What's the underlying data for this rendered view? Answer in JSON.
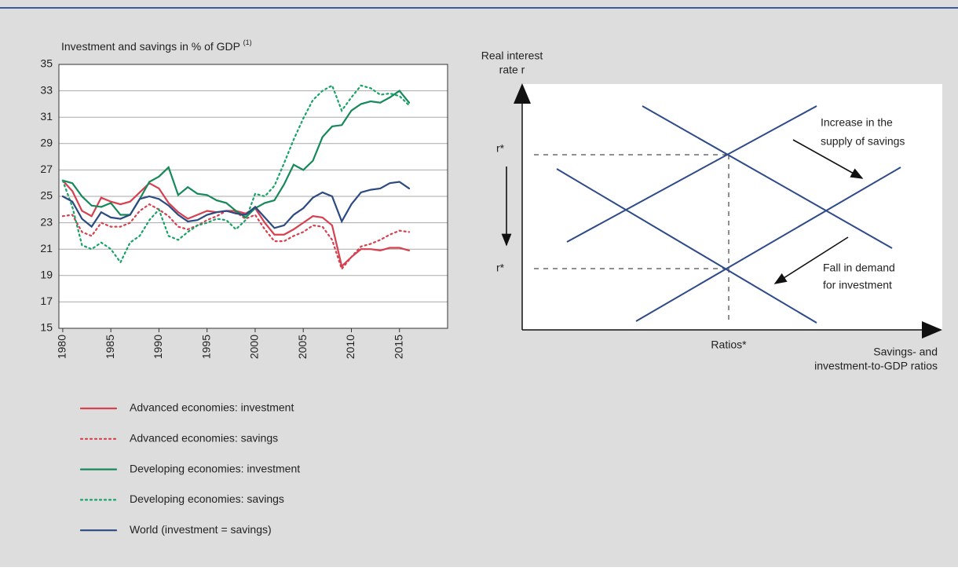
{
  "chart_data": {
    "type": "line",
    "title": "Investment and savings in % of GDP",
    "title_note": "(1)",
    "x": [
      1980,
      1981,
      1982,
      1983,
      1984,
      1985,
      1986,
      1987,
      1988,
      1989,
      1990,
      1991,
      1992,
      1993,
      1994,
      1995,
      1996,
      1997,
      1998,
      1999,
      2000,
      2001,
      2002,
      2003,
      2004,
      2005,
      2006,
      2007,
      2008,
      2009,
      2010,
      2011,
      2012,
      2013,
      2014,
      2015,
      2016
    ],
    "xlim": [
      1979.6,
      2020
    ],
    "xticks": [
      1980,
      1985,
      1990,
      1995,
      2000,
      2005,
      2010,
      2015
    ],
    "ylim": [
      15,
      35
    ],
    "yticks": [
      15,
      17,
      19,
      21,
      23,
      25,
      27,
      29,
      31,
      33,
      35
    ],
    "grid": true,
    "series": [
      {
        "name": "Advanced economies: investment",
        "color": "#d6404f",
        "style": "solid",
        "values": [
          26.2,
          25.4,
          23.9,
          23.5,
          24.9,
          24.6,
          24.4,
          24.6,
          25.3,
          26.0,
          25.6,
          24.5,
          23.8,
          23.3,
          23.6,
          23.9,
          23.8,
          23.9,
          23.9,
          23.7,
          24.1,
          23.0,
          22.1,
          22.1,
          22.5,
          23.0,
          23.5,
          23.4,
          22.8,
          19.7,
          20.4,
          21.0,
          21.0,
          20.9,
          21.1,
          21.1,
          20.9
        ]
      },
      {
        "name": "Advanced economies: savings",
        "color": "#d6404f",
        "style": "dotted",
        "values": [
          23.5,
          23.6,
          22.3,
          22.0,
          23.0,
          22.7,
          22.7,
          23.0,
          23.9,
          24.4,
          24.0,
          23.5,
          22.7,
          22.5,
          22.8,
          23.2,
          23.5,
          23.9,
          23.8,
          23.3,
          23.6,
          22.5,
          21.6,
          21.6,
          22.0,
          22.3,
          22.8,
          22.7,
          21.7,
          19.5,
          20.4,
          21.2,
          21.4,
          21.7,
          22.1,
          22.4,
          22.3
        ]
      },
      {
        "name": "Developing economies: investment",
        "color": "#16895a",
        "style": "solid",
        "values": [
          26.2,
          26.0,
          25.0,
          24.3,
          24.2,
          24.5,
          23.6,
          23.6,
          24.8,
          26.1,
          26.5,
          27.2,
          25.1,
          25.7,
          25.2,
          25.1,
          24.7,
          24.5,
          23.9,
          23.4,
          24.1,
          24.5,
          24.7,
          25.9,
          27.4,
          27.0,
          27.7,
          29.5,
          30.3,
          30.4,
          31.5,
          32.0,
          32.2,
          32.1,
          32.5,
          33.0,
          32.1
        ]
      },
      {
        "name": "Developing economies: savings",
        "color": "#16a366",
        "style": "dotted",
        "values": [
          26.2,
          24.2,
          21.3,
          21.0,
          21.5,
          21.0,
          20.0,
          21.5,
          22.0,
          23.2,
          24.0,
          22.0,
          21.7,
          22.3,
          22.8,
          23.0,
          23.3,
          23.2,
          22.5,
          23.2,
          25.2,
          25.0,
          25.8,
          27.5,
          29.3,
          30.9,
          32.3,
          33.0,
          33.4,
          31.5,
          32.5,
          33.4,
          33.2,
          32.7,
          32.8,
          32.6,
          31.9
        ]
      },
      {
        "name": "World (investment = savings)",
        "color": "#2b4a82",
        "style": "solid",
        "values": [
          25.0,
          24.6,
          23.3,
          22.7,
          23.8,
          23.4,
          23.3,
          23.6,
          24.8,
          25.0,
          24.8,
          24.3,
          23.6,
          23.1,
          23.2,
          23.6,
          23.8,
          23.9,
          23.7,
          23.6,
          24.2,
          23.4,
          22.6,
          22.8,
          23.6,
          24.1,
          24.9,
          25.3,
          25.0,
          23.1,
          24.4,
          25.3,
          25.5,
          25.6,
          26.0,
          26.1,
          25.6
        ]
      }
    ]
  },
  "diagram": {
    "y_axis_label": [
      "Real interest",
      "rate r"
    ],
    "x_axis_label": [
      "Savings- and",
      "investment-to-GDP ratios"
    ],
    "r_star_upper": "r*",
    "r_star_lower": "r*",
    "ratios_label": "Ratios*",
    "annotation_supply": [
      "Increase in the",
      "supply of savings"
    ],
    "annotation_demand": [
      "Fall in demand",
      "for investment"
    ]
  }
}
